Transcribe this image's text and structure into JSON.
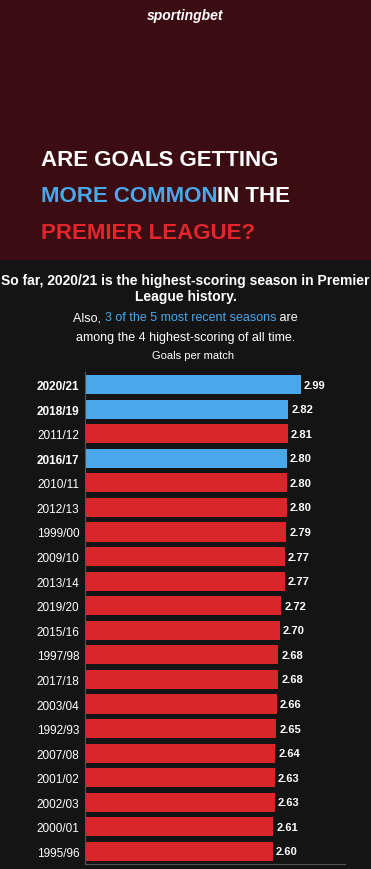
{
  "chart_data": {
    "type": "bar",
    "orientation": "horizontal",
    "logo": "sportingbet",
    "title": [
      {
        "text": "ARE GOALS GETTING",
        "color": "#ffffff"
      },
      {
        "text": "MORE COMMON",
        "color": "#4aa8ea"
      },
      {
        "text": "IN THE",
        "color": "#ffffff"
      },
      {
        "text": "PREMIER LEAGUE?",
        "color": "#e3262b"
      }
    ],
    "subtitle": "So far, 2020/21 is the highest-scoring season in Premier League history.",
    "note": [
      {
        "text": "Also, ",
        "color": "#ffffff"
      },
      {
        "text": "3 of the 5 most recent seasons",
        "color": "#4aa8ea"
      },
      {
        "text": " are",
        "color": "#ffffff"
      },
      {
        "text": "among the 4 highest-scoring of all time.",
        "color": "#ffffff"
      }
    ],
    "value_title": "Goals per match",
    "categories": [
      "2020/21",
      "2018/19",
      "2011/12",
      "2016/17",
      "2010/11",
      "2012/13",
      "1999/00",
      "2009/10",
      "2013/14",
      "2019/20",
      "2015/16",
      "1997/98",
      "2017/18",
      "2003/04",
      "1992/93",
      "2007/08",
      "2001/02",
      "2002/03",
      "2000/01",
      "1995/96"
    ],
    "values": [
      2.99,
      2.82,
      2.81,
      2.8,
      2.8,
      2.8,
      2.79,
      2.77,
      2.77,
      2.72,
      2.7,
      2.68,
      2.68,
      2.66,
      2.65,
      2.64,
      2.63,
      2.63,
      2.61,
      2.6
    ],
    "colors": [
      "#4aa8ea",
      "#4aa8ea",
      "#d9262b",
      "#4aa8ea",
      "#d9262b",
      "#d9262b",
      "#d9262b",
      "#d9262b",
      "#d9262b",
      "#d9262b",
      "#d9262b",
      "#d9262b",
      "#d9262b",
      "#d9262b",
      "#d9262b",
      "#d9262b",
      "#d9262b",
      "#d9262b",
      "#d9262b",
      "#d9262b"
    ],
    "xlim": [
      0,
      3.6
    ],
    "data_labels": true,
    "tick_labels": "y"
  }
}
